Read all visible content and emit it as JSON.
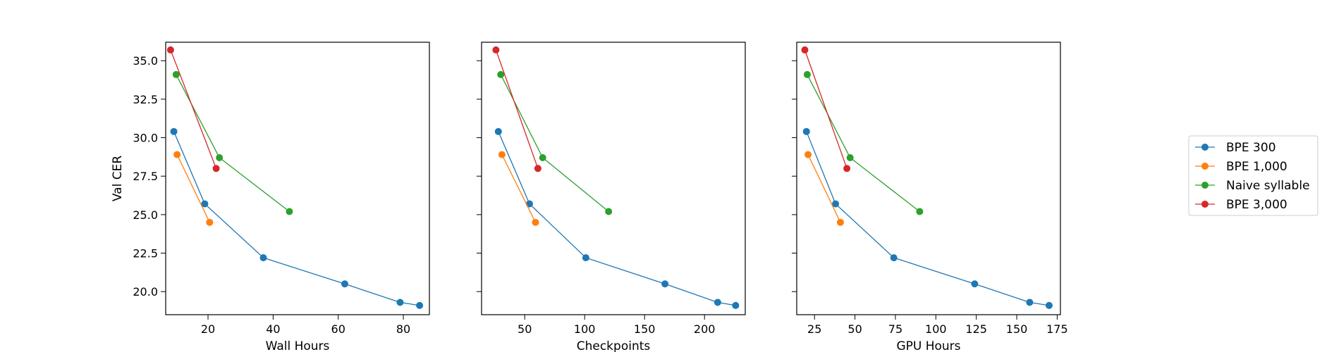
{
  "chart_data": [
    {
      "type": "line",
      "xlabel": "Wall Hours",
      "ylabel": "Val CER",
      "xlim": [
        7,
        88
      ],
      "ylim": [
        18.5,
        36.2
      ],
      "xticks": [
        20,
        40,
        60,
        80
      ],
      "yticks": [
        20.0,
        22.5,
        25.0,
        27.5,
        30.0,
        32.5,
        35.0
      ],
      "ytick_labels": [
        "20.0",
        "22.5",
        "25.0",
        "27.5",
        "30.0",
        "32.5",
        "35.0"
      ],
      "series": [
        {
          "name": "BPE 300",
          "points": [
            [
              9.5,
              30.4
            ],
            [
              19,
              25.7
            ],
            [
              37,
              22.2
            ],
            [
              62,
              20.5
            ],
            [
              79,
              19.3
            ],
            [
              85,
              19.1
            ]
          ]
        },
        {
          "name": "BPE 1,000",
          "points": [
            [
              10.5,
              28.9
            ],
            [
              20.5,
              24.5
            ]
          ]
        },
        {
          "name": "Naive syllable",
          "points": [
            [
              10.2,
              34.1
            ],
            [
              23.5,
              28.7
            ],
            [
              45,
              25.2
            ]
          ]
        },
        {
          "name": "BPE 3,000",
          "points": [
            [
              8.5,
              35.7
            ],
            [
              22.5,
              28.0
            ]
          ]
        }
      ]
    },
    {
      "type": "line",
      "xlabel": "Checkpoints",
      "ylabel": "",
      "xlim": [
        14,
        234
      ],
      "ylim": [
        18.5,
        36.2
      ],
      "xticks": [
        50,
        100,
        150,
        200
      ],
      "yticks": [
        20.0,
        22.5,
        25.0,
        27.5,
        30.0,
        32.5,
        35.0
      ],
      "ytick_labels": [
        "",
        "",
        "",
        "",
        "",
        "",
        ""
      ],
      "series": [
        {
          "name": "BPE 300",
          "points": [
            [
              28,
              30.4
            ],
            [
              54,
              25.7
            ],
            [
              101,
              22.2
            ],
            [
              167,
              20.5
            ],
            [
              211,
              19.3
            ],
            [
              226,
              19.1
            ]
          ]
        },
        {
          "name": "BPE 1,000",
          "points": [
            [
              31,
              28.9
            ],
            [
              59,
              24.5
            ]
          ]
        },
        {
          "name": "Naive syllable",
          "points": [
            [
              30,
              34.1
            ],
            [
              65,
              28.7
            ],
            [
              120,
              25.2
            ]
          ]
        },
        {
          "name": "BPE 3,000",
          "points": [
            [
              26,
              35.7
            ],
            [
              61,
              28.0
            ]
          ]
        }
      ]
    },
    {
      "type": "line",
      "xlabel": "GPU Hours",
      "ylabel": "",
      "xlim": [
        14,
        177
      ],
      "ylim": [
        18.5,
        36.2
      ],
      "xticks": [
        25,
        50,
        75,
        100,
        125,
        150,
        175
      ],
      "yticks": [
        20.0,
        22.5,
        25.0,
        27.5,
        30.0,
        32.5,
        35.0
      ],
      "ytick_labels": [
        "",
        "",
        "",
        "",
        "",
        "",
        ""
      ],
      "series": [
        {
          "name": "BPE 300",
          "points": [
            [
              20,
              30.4
            ],
            [
              38,
              25.7
            ],
            [
              74,
              22.2
            ],
            [
              124,
              20.5
            ],
            [
              158,
              19.3
            ],
            [
              170,
              19.1
            ]
          ]
        },
        {
          "name": "BPE 1,000",
          "points": [
            [
              21,
              28.9
            ],
            [
              41,
              24.5
            ]
          ]
        },
        {
          "name": "Naive syllable",
          "points": [
            [
              20.5,
              34.1
            ],
            [
              47,
              28.7
            ],
            [
              90,
              25.2
            ]
          ]
        },
        {
          "name": "BPE 3,000",
          "points": [
            [
              19,
              35.7
            ],
            [
              45,
              28.0
            ]
          ]
        }
      ]
    }
  ],
  "legend": {
    "position": "right",
    "entries": [
      "BPE 300",
      "BPE 1,000",
      "Naive syllable",
      "BPE 3,000"
    ]
  },
  "colors": {
    "BPE 300": "#1f77b4",
    "BPE 1,000": "#ff7f0e",
    "Naive syllable": "#2ca02c",
    "BPE 3,000": "#d62728"
  }
}
